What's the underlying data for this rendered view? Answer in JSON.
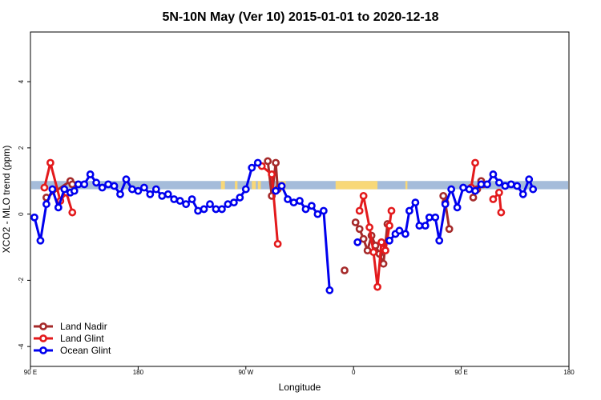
{
  "chart_data": {
    "type": "line",
    "title": "5N-10N May (Ver 10)   2015-01-01 to 2020-12-18",
    "xlabel": "Longitude",
    "ylabel": "XCO2 - MLO trend (ppm)",
    "xlim": [
      -90,
      180
    ],
    "ylim": [
      -4.6,
      5.5
    ],
    "x_ticks": [
      {
        "value": -90,
        "label": "90 E"
      },
      {
        "value": -36,
        "label": "180"
      },
      {
        "value": 18,
        "label": "90 W"
      },
      {
        "value": 72,
        "label": "0"
      },
      {
        "value": 126,
        "label": "90 E"
      },
      {
        "value": 180,
        "label": "180"
      }
    ],
    "y_ticks": [
      -4,
      -2,
      0,
      2,
      4
    ],
    "legend_position": "bottom-left",
    "band": {
      "y_range": [
        0.75,
        1.0
      ],
      "colors": {
        "ocean": "#a5bcda",
        "land": "#f8d878"
      },
      "land_segments": [
        [
          5.5,
          7.5
        ],
        [
          12.5,
          13.8
        ],
        [
          21,
          23
        ],
        [
          24,
          25.5
        ],
        [
          35,
          38
        ],
        [
          63,
          84
        ],
        [
          98,
          99
        ]
      ]
    },
    "series": [
      {
        "name": "Land Nadir",
        "color": "#a52a2a",
        "segments": [
          [
            [
              -82,
              0.5
            ],
            [
              -70,
              1.0
            ],
            [
              -69,
              0.9
            ]
          ],
          [
            [
              29,
              1.6
            ],
            [
              31,
              0.55
            ],
            [
              33,
              1.55
            ],
            [
              34,
              0.75
            ]
          ],
          [
            [
              67.5,
              -1.7
            ]
          ],
          [
            [
              73,
              -0.25
            ],
            [
              75,
              -0.45
            ],
            [
              77,
              -0.75
            ],
            [
              79,
              -1.1
            ],
            [
              81,
              -0.65
            ],
            [
              83,
              -0.95
            ],
            [
              85,
              -1.2
            ],
            [
              87,
              -1.5
            ],
            [
              89,
              -0.3
            ]
          ],
          [
            [
              117,
              0.55
            ],
            [
              118,
              0.35
            ],
            [
              120,
              -0.45
            ]
          ],
          [
            [
              132,
              0.5
            ],
            [
              134,
              0.75
            ],
            [
              136,
              1.0
            ],
            [
              137,
              0.9
            ]
          ]
        ]
      },
      {
        "name": "Land Glint",
        "color": "#e31a1c",
        "segments": [
          [
            [
              -83,
              0.8
            ],
            [
              -80,
              1.55
            ],
            [
              -75,
              0.4
            ],
            [
              -72,
              0.65
            ],
            [
              -69,
              0.05
            ]
          ],
          [
            [
              26,
              1.45
            ],
            [
              31,
              1.2
            ],
            [
              34,
              -0.9
            ]
          ],
          [
            [
              75,
              0.1
            ],
            [
              77,
              0.55
            ],
            [
              80,
              -0.4
            ],
            [
              82,
              -1.15
            ],
            [
              84,
              -2.2
            ],
            [
              86,
              -0.85
            ],
            [
              88,
              -1.1
            ],
            [
              90,
              -0.35
            ],
            [
              91,
              0.1
            ]
          ],
          [
            [
              131,
              0.8
            ],
            [
              133,
              1.55
            ]
          ],
          [
            [
              142,
              0.45
            ],
            [
              145,
              0.65
            ],
            [
              146,
              0.05
            ]
          ]
        ]
      },
      {
        "name": "Ocean Glint",
        "color": "#0000ee",
        "segments": [
          [
            [
              -88,
              -0.1
            ],
            [
              -85,
              -0.8
            ],
            [
              -82,
              0.3
            ],
            [
              -79,
              0.75
            ],
            [
              -76,
              0.2
            ],
            [
              -73,
              0.75
            ],
            [
              -70,
              0.65
            ],
            [
              -68,
              0.7
            ],
            [
              -66,
              0.9
            ],
            [
              -63,
              0.9
            ],
            [
              -60,
              1.2
            ],
            [
              -57,
              0.95
            ],
            [
              -54,
              0.8
            ],
            [
              -51,
              0.9
            ],
            [
              -48,
              0.85
            ],
            [
              -45,
              0.6
            ],
            [
              -42,
              1.05
            ],
            [
              -39,
              0.75
            ],
            [
              -36,
              0.7
            ],
            [
              -33,
              0.8
            ],
            [
              -30,
              0.6
            ],
            [
              -27,
              0.75
            ],
            [
              -24,
              0.55
            ],
            [
              -21,
              0.6
            ],
            [
              -18,
              0.45
            ],
            [
              -15,
              0.4
            ],
            [
              -12,
              0.3
            ],
            [
              -9,
              0.45
            ],
            [
              -6,
              0.1
            ],
            [
              -3,
              0.15
            ],
            [
              0,
              0.3
            ],
            [
              3,
              0.15
            ],
            [
              6,
              0.15
            ],
            [
              9,
              0.3
            ],
            [
              12,
              0.35
            ],
            [
              15,
              0.5
            ],
            [
              18,
              0.75
            ],
            [
              21,
              1.4
            ],
            [
              24,
              1.55
            ]
          ],
          [
            [
              33,
              0.7
            ],
            [
              36,
              0.85
            ],
            [
              39,
              0.45
            ],
            [
              42,
              0.35
            ],
            [
              45,
              0.4
            ],
            [
              48,
              0.15
            ],
            [
              51,
              0.25
            ],
            [
              54,
              0.0
            ],
            [
              57,
              0.1
            ],
            [
              60,
              -2.3
            ]
          ],
          [
            [
              74,
              -0.85
            ]
          ],
          [
            [
              90,
              -0.8
            ],
            [
              93,
              -0.6
            ],
            [
              95,
              -0.5
            ],
            [
              98,
              -0.6
            ],
            [
              100,
              0.1
            ],
            [
              103,
              0.35
            ],
            [
              105,
              -0.35
            ],
            [
              108,
              -0.35
            ],
            [
              110,
              -0.1
            ],
            [
              113,
              -0.1
            ],
            [
              115,
              -0.8
            ],
            [
              118,
              0.3
            ],
            [
              121,
              0.75
            ],
            [
              124,
              0.2
            ],
            [
              127,
              0.8
            ],
            [
              130,
              0.75
            ],
            [
              133,
              0.7
            ],
            [
              136,
              0.9
            ],
            [
              139,
              0.9
            ],
            [
              142,
              1.2
            ],
            [
              145,
              0.95
            ],
            [
              148,
              0.85
            ],
            [
              151,
              0.9
            ],
            [
              154,
              0.85
            ],
            [
              157,
              0.6
            ],
            [
              160,
              1.05
            ],
            [
              162,
              0.75
            ]
          ]
        ]
      }
    ]
  }
}
